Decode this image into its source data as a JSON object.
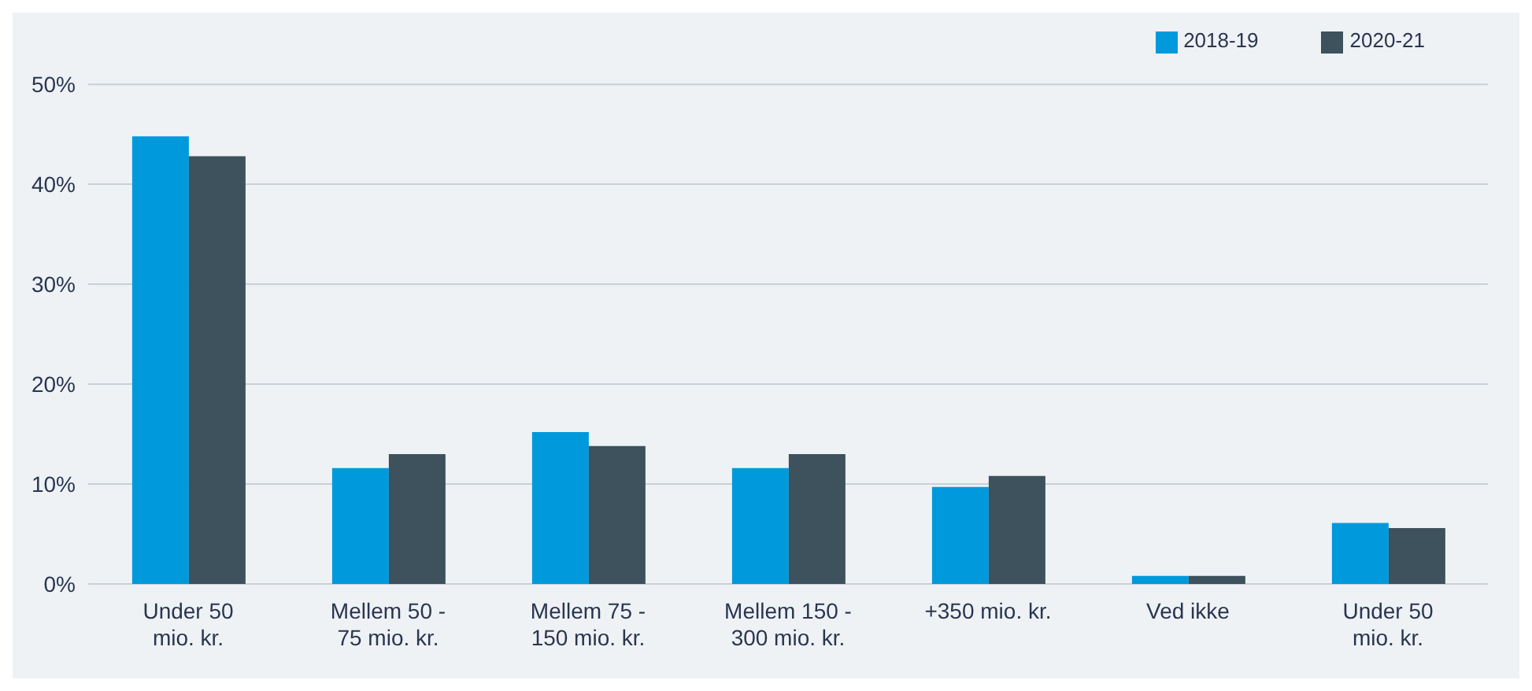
{
  "chart_data": {
    "type": "bar",
    "categories": [
      "Under 50 mio. kr.",
      "Mellem 50 - 75 mio. kr.",
      "Mellem 75 - 150 mio. kr.",
      "Mellem 150 - 300 mio. kr.",
      "+350 mio. kr.",
      "Ved ikke",
      "Under 50 mio. kr."
    ],
    "series": [
      {
        "name": "2018-19",
        "color": "#0099dc",
        "values": [
          44.8,
          11.6,
          15.2,
          11.6,
          9.7,
          0.8,
          6.1
        ]
      },
      {
        "name": "2020-21",
        "color": "#3d525c",
        "values": [
          42.8,
          13.0,
          13.8,
          13.0,
          10.8,
          0.8,
          5.6
        ]
      }
    ],
    "ylim": [
      0,
      50
    ],
    "yticks": [
      {
        "value": 0,
        "label": "0%"
      },
      {
        "value": 10,
        "label": "10%"
      },
      {
        "value": 20,
        "label": "20%"
      },
      {
        "value": 30,
        "label": "30%"
      },
      {
        "value": 40,
        "label": "40%"
      },
      {
        "value": 50,
        "label": "50%"
      }
    ],
    "grid": "y",
    "legend": "top right",
    "marker": "square"
  }
}
